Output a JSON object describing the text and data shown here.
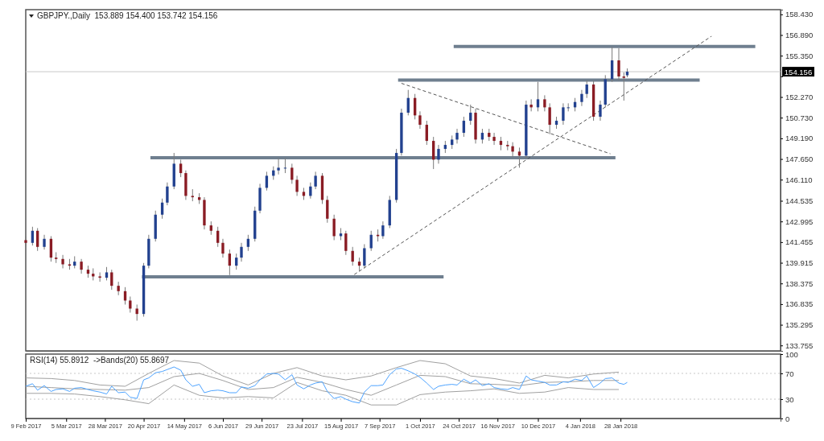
{
  "chart_data": [
    {
      "type": "candlestick",
      "title": "GBPJPY.,Daily  153.889 154.400 153.742 154.156",
      "xlim": [
        "2017-02-09",
        "2018-05-03"
      ],
      "ylim": [
        133.35,
        158.78
      ],
      "yticks": [
        {
          "value": 158.43,
          "label": "158.430"
        },
        {
          "value": 156.89,
          "label": "156.890"
        },
        {
          "value": 155.35,
          "label": "155.350"
        },
        {
          "value": 153.81,
          "label": null
        },
        {
          "value": 152.27,
          "label": "152.270"
        },
        {
          "value": 150.73,
          "label": "150.730"
        },
        {
          "value": 149.19,
          "label": "149.190"
        },
        {
          "value": 147.65,
          "label": "147.650"
        },
        {
          "value": 146.11,
          "label": "146.110"
        },
        {
          "value": 144.535,
          "label": "144.535"
        },
        {
          "value": 142.995,
          "label": "142.995"
        },
        {
          "value": 141.455,
          "label": "141.455"
        },
        {
          "value": 139.915,
          "label": "139.915"
        },
        {
          "value": 138.375,
          "label": "138.375"
        },
        {
          "value": 136.835,
          "label": "136.835"
        },
        {
          "value": 135.295,
          "label": "135.295"
        },
        {
          "value": 133.755,
          "label": "133.755"
        }
      ],
      "tick_labels": "y",
      "ref_lines": [
        {
          "axis": "y",
          "value": 154.156,
          "label": "154.156",
          "color": "#c8c8c8"
        }
      ],
      "series": [
        {
          "type": "candlestick",
          "x": [
            "2017-02-09",
            "2017-02-13",
            "2017-02-16",
            "2017-02-20",
            "2017-02-24",
            "2017-02-27",
            "2017-03-03",
            "2017-03-07",
            "2017-03-10",
            "2017-03-14",
            "2017-03-18",
            "2017-03-21",
            "2017-03-25",
            "2017-03-29",
            "2017-04-01",
            "2017-04-05",
            "2017-04-09",
            "2017-04-12",
            "2017-04-16",
            "2017-04-20",
            "2017-04-23",
            "2017-04-27",
            "2017-05-01",
            "2017-05-04",
            "2017-05-08",
            "2017-05-12",
            "2017-05-15",
            "2017-05-19",
            "2017-05-23",
            "2017-05-26",
            "2017-05-30",
            "2017-06-03",
            "2017-06-06",
            "2017-06-10",
            "2017-06-14",
            "2017-06-17",
            "2017-06-21",
            "2017-06-25",
            "2017-06-28",
            "2017-07-02",
            "2017-07-06",
            "2017-07-09",
            "2017-07-13",
            "2017-07-17",
            "2017-07-20",
            "2017-07-24",
            "2017-07-28",
            "2017-07-31",
            "2017-08-04",
            "2017-08-07",
            "2017-08-11",
            "2017-08-15",
            "2017-08-18",
            "2017-08-22",
            "2017-08-26",
            "2017-08-29",
            "2017-09-02",
            "2017-09-06",
            "2017-09-09",
            "2017-09-13",
            "2017-09-17",
            "2017-09-20",
            "2017-09-24",
            "2017-09-28",
            "2017-10-01",
            "2017-10-05",
            "2017-10-09",
            "2017-10-12",
            "2017-10-16",
            "2017-10-20",
            "2017-10-23",
            "2017-10-27",
            "2017-10-31",
            "2017-11-03",
            "2017-11-07",
            "2017-11-11",
            "2017-11-14",
            "2017-11-18",
            "2017-11-22",
            "2017-11-25",
            "2017-11-29",
            "2017-12-03",
            "2017-12-06",
            "2017-12-10",
            "2017-12-14",
            "2017-12-17",
            "2017-12-21",
            "2017-12-25",
            "2017-12-28",
            "2018-01-01",
            "2018-01-05",
            "2018-01-08",
            "2018-01-12",
            "2018-01-16",
            "2018-01-19",
            "2018-01-23",
            "2018-01-27",
            "2018-01-30",
            "2018-02-01"
          ],
          "ohlc": [
            [
              141.6,
              141.9,
              141.1,
              141.4
            ],
            [
              141.4,
              142.6,
              141.2,
              142.3
            ],
            [
              142.3,
              142.5,
              140.8,
              141.1
            ],
            [
              141.1,
              142.0,
              140.9,
              141.7
            ],
            [
              141.7,
              141.9,
              140.0,
              140.3
            ],
            [
              140.3,
              140.7,
              139.9,
              140.2
            ],
            [
              140.2,
              140.5,
              139.5,
              139.8
            ],
            [
              139.8,
              140.2,
              139.4,
              139.7
            ],
            [
              139.7,
              140.4,
              139.5,
              140.0
            ],
            [
              140.0,
              140.2,
              139.1,
              139.4
            ],
            [
              139.4,
              139.7,
              138.8,
              139.1
            ],
            [
              139.1,
              139.5,
              138.6,
              138.9
            ],
            [
              138.9,
              139.2,
              138.5,
              138.8
            ],
            [
              138.8,
              139.6,
              138.6,
              139.2
            ],
            [
              139.2,
              139.4,
              137.9,
              138.2
            ],
            [
              138.2,
              138.5,
              137.5,
              137.8
            ],
            [
              137.8,
              138.1,
              136.8,
              137.1
            ],
            [
              137.1,
              137.4,
              136.2,
              136.5
            ],
            [
              136.5,
              136.8,
              135.6,
              136.1
            ],
            [
              136.1,
              139.9,
              135.9,
              139.7
            ],
            [
              139.7,
              142.0,
              139.5,
              141.7
            ],
            [
              141.7,
              143.8,
              141.5,
              143.5
            ],
            [
              143.5,
              144.7,
              143.2,
              144.4
            ],
            [
              144.4,
              145.9,
              144.2,
              145.6
            ],
            [
              145.6,
              148.1,
              145.4,
              147.3
            ],
            [
              147.3,
              147.6,
              146.3,
              146.6
            ],
            [
              146.6,
              146.8,
              144.6,
              144.9
            ],
            [
              144.9,
              145.4,
              144.5,
              144.8
            ],
            [
              144.8,
              145.1,
              144.3,
              144.6
            ],
            [
              144.6,
              144.8,
              142.4,
              142.7
            ],
            [
              142.7,
              143.0,
              142.0,
              142.3
            ],
            [
              142.3,
              142.6,
              141.1,
              141.4
            ],
            [
              141.4,
              141.7,
              140.3,
              140.6
            ],
            [
              140.6,
              140.9,
              139.0,
              139.7
            ],
            [
              139.7,
              140.6,
              139.4,
              140.3
            ],
            [
              140.3,
              141.4,
              140.0,
              141.1
            ],
            [
              141.1,
              142.0,
              140.8,
              141.7
            ],
            [
              141.7,
              144.1,
              141.5,
              143.8
            ],
            [
              143.8,
              145.8,
              143.6,
              145.5
            ],
            [
              145.5,
              146.7,
              145.3,
              146.4
            ],
            [
              146.4,
              147.1,
              146.1,
              146.8
            ],
            [
              146.8,
              147.7,
              146.5,
              147.0
            ],
            [
              147.0,
              147.7,
              146.6,
              147.0
            ],
            [
              147.0,
              147.3,
              145.8,
              146.1
            ],
            [
              146.1,
              146.4,
              144.9,
              145.2
            ],
            [
              145.2,
              145.5,
              144.6,
              144.9
            ],
            [
              144.9,
              145.9,
              144.7,
              145.6
            ],
            [
              145.6,
              146.7,
              145.4,
              146.4
            ],
            [
              146.4,
              146.6,
              144.3,
              144.6
            ],
            [
              144.6,
              144.9,
              142.9,
              143.2
            ],
            [
              143.2,
              143.5,
              141.6,
              141.9
            ],
            [
              141.9,
              142.5,
              141.6,
              142.1
            ],
            [
              142.1,
              142.3,
              140.5,
              140.8
            ],
            [
              140.8,
              141.1,
              139.7,
              140.0
            ],
            [
              140.0,
              140.3,
              139.3,
              139.7
            ],
            [
              139.7,
              141.3,
              139.5,
              141.0
            ],
            [
              141.0,
              142.3,
              140.8,
              142.0
            ],
            [
              142.0,
              142.4,
              141.5,
              141.9
            ],
            [
              141.9,
              143.0,
              141.7,
              142.7
            ],
            [
              142.7,
              144.9,
              142.5,
              144.6
            ],
            [
              144.6,
              148.4,
              144.4,
              148.1
            ],
            [
              148.1,
              151.4,
              147.9,
              151.1
            ],
            [
              151.1,
              152.8,
              150.9,
              152.2
            ],
            [
              152.2,
              152.5,
              150.6,
              150.9
            ],
            [
              150.9,
              151.2,
              149.9,
              150.2
            ],
            [
              150.2,
              150.5,
              148.7,
              149.0
            ],
            [
              149.0,
              149.3,
              146.9,
              147.6
            ],
            [
              147.6,
              148.7,
              147.3,
              148.4
            ],
            [
              148.4,
              149.0,
              148.1,
              148.7
            ],
            [
              148.7,
              149.4,
              148.4,
              149.1
            ],
            [
              149.1,
              149.9,
              148.8,
              149.6
            ],
            [
              149.6,
              150.8,
              149.3,
              150.5
            ],
            [
              150.5,
              151.7,
              150.2,
              151.1
            ],
            [
              151.1,
              151.4,
              148.8,
              149.1
            ],
            [
              149.1,
              149.9,
              148.8,
              149.6
            ],
            [
              149.6,
              149.9,
              149.0,
              149.3
            ],
            [
              149.3,
              149.6,
              148.7,
              149.0
            ],
            [
              149.0,
              149.3,
              148.3,
              148.7
            ],
            [
              148.7,
              149.0,
              148.3,
              148.6
            ],
            [
              148.6,
              148.9,
              147.8,
              148.2
            ],
            [
              148.2,
              148.5,
              147.0,
              147.9
            ],
            [
              147.9,
              152.0,
              147.7,
              151.7
            ],
            [
              151.7,
              152.1,
              151.2,
              151.5
            ],
            [
              151.5,
              153.4,
              151.2,
              152.1
            ],
            [
              152.1,
              152.4,
              151.2,
              151.5
            ],
            [
              151.5,
              151.8,
              149.5,
              150.2
            ],
            [
              150.2,
              150.8,
              149.9,
              150.5
            ],
            [
              150.5,
              151.8,
              150.2,
              151.5
            ],
            [
              151.5,
              151.8,
              151.2,
              151.5
            ],
            [
              151.5,
              152.2,
              151.2,
              151.9
            ],
            [
              151.9,
              152.8,
              151.6,
              152.5
            ],
            [
              152.5,
              153.5,
              152.2,
              153.2
            ],
            [
              153.2,
              153.5,
              150.5,
              150.8
            ],
            [
              150.8,
              152.0,
              150.5,
              151.7
            ],
            [
              151.7,
              153.9,
              151.5,
              153.6
            ],
            [
              153.6,
              156.0,
              153.4,
              155.0
            ],
            [
              155.0,
              155.9,
              153.5,
              153.8
            ],
            [
              153.8,
              154.1,
              152.0,
              153.7
            ],
            [
              153.889,
              154.4,
              153.742,
              154.156
            ]
          ]
        },
        {
          "type": "line",
          "x": [
            "2017-10-21",
            "2018-04-18"
          ],
          "values": [
            156.04,
            156.04
          ],
          "color": "#6f7f8f",
          "line_style": "solid"
        },
        {
          "type": "line",
          "x": [
            "2017-09-18",
            "2018-03-16"
          ],
          "values": [
            153.53,
            153.53
          ],
          "color": "#6f7f8f",
          "line_style": "solid"
        },
        {
          "type": "line",
          "x": [
            "2017-04-24",
            "2018-01-25"
          ],
          "values": [
            147.74,
            147.74
          ],
          "color": "#6f7f8f",
          "line_style": "solid"
        },
        {
          "type": "line",
          "x": [
            "2017-04-19",
            "2017-10-15"
          ],
          "values": [
            138.87,
            138.87
          ],
          "color": "#6f7f8f",
          "line_style": "solid"
        },
        {
          "type": "line",
          "x": [
            "2017-08-23",
            "2018-03-23"
          ],
          "values": [
            139.04,
            156.8
          ],
          "color": "#555555",
          "line_style": "dashed"
        },
        {
          "type": "line",
          "x": [
            "2017-09-20",
            "2018-01-22"
          ],
          "values": [
            153.29,
            148.04
          ],
          "color": "#555555",
          "line_style": "dashed"
        }
      ]
    },
    {
      "type": "line",
      "title": "RSI(14) 55.8912  ->Bands(20) 55.8697",
      "xlim": [
        "2017-02-09",
        "2018-05-03"
      ],
      "xticks": [
        {
          "value": "2017-02-09",
          "label": "9 Feb 2017"
        },
        {
          "value": "2017-03-05",
          "label": "5 Mar 2017"
        },
        {
          "value": "2017-03-28",
          "label": "28 Mar 2017"
        },
        {
          "value": "2017-04-20",
          "label": "20 Apr 2017"
        },
        {
          "value": "2017-05-14",
          "label": "14 May 2017"
        },
        {
          "value": "2017-06-06",
          "label": "6 Jun 2017"
        },
        {
          "value": "2017-06-29",
          "label": "29 Jun 2017"
        },
        {
          "value": "2017-07-23",
          "label": "23 Jul 2017"
        },
        {
          "value": "2017-08-15",
          "label": "15 Aug 2017"
        },
        {
          "value": "2017-09-07",
          "label": "7 Sep 2017"
        },
        {
          "value": "2017-10-01",
          "label": "1 Oct 2017"
        },
        {
          "value": "2017-10-24",
          "label": "24 Oct 2017"
        },
        {
          "value": "2017-11-16",
          "label": "16 Nov 2017"
        },
        {
          "value": "2017-12-10",
          "label": "10 Dec 2017"
        },
        {
          "value": "2018-01-04",
          "label": "4 Jan 2018"
        },
        {
          "value": "2018-01-28",
          "label": "28 Jan 2018"
        }
      ],
      "ylim": [
        0,
        100
      ],
      "yticks": [
        0,
        30,
        70,
        100
      ],
      "ref_lines": [
        {
          "axis": "y",
          "value": 70,
          "color": "#c8c8c8",
          "line_style": "dotted"
        },
        {
          "axis": "y",
          "value": 30,
          "color": "#c8c8c8",
          "line_style": "dotted"
        }
      ],
      "x": [
        "2017-02-09",
        "2017-02-13",
        "2017-02-16",
        "2017-02-20",
        "2017-02-24",
        "2017-02-27",
        "2017-03-03",
        "2017-03-07",
        "2017-03-10",
        "2017-03-14",
        "2017-03-18",
        "2017-03-21",
        "2017-03-25",
        "2017-03-29",
        "2017-04-01",
        "2017-04-05",
        "2017-04-09",
        "2017-04-12",
        "2017-04-16",
        "2017-04-20",
        "2017-04-23",
        "2017-04-27",
        "2017-05-01",
        "2017-05-04",
        "2017-05-08",
        "2017-05-12",
        "2017-05-15",
        "2017-05-19",
        "2017-05-23",
        "2017-05-26",
        "2017-05-30",
        "2017-06-03",
        "2017-06-06",
        "2017-06-10",
        "2017-06-14",
        "2017-06-17",
        "2017-06-21",
        "2017-06-25",
        "2017-06-28",
        "2017-07-02",
        "2017-07-06",
        "2017-07-09",
        "2017-07-13",
        "2017-07-17",
        "2017-07-20",
        "2017-07-24",
        "2017-07-28",
        "2017-07-31",
        "2017-08-04",
        "2017-08-07",
        "2017-08-11",
        "2017-08-15",
        "2017-08-18",
        "2017-08-22",
        "2017-08-26",
        "2017-08-29",
        "2017-09-02",
        "2017-09-06",
        "2017-09-09",
        "2017-09-13",
        "2017-09-17",
        "2017-09-20",
        "2017-09-24",
        "2017-09-28",
        "2017-10-01",
        "2017-10-05",
        "2017-10-09",
        "2017-10-12",
        "2017-10-16",
        "2017-10-20",
        "2017-10-23",
        "2017-10-27",
        "2017-10-31",
        "2017-11-03",
        "2017-11-07",
        "2017-11-11",
        "2017-11-14",
        "2017-11-18",
        "2017-11-22",
        "2017-11-25",
        "2017-11-29",
        "2017-12-03",
        "2017-12-06",
        "2017-12-10",
        "2017-12-14",
        "2017-12-17",
        "2017-12-21",
        "2017-12-25",
        "2017-12-28",
        "2018-01-01",
        "2018-01-05",
        "2018-01-08",
        "2018-01-12",
        "2018-01-16",
        "2018-01-19",
        "2018-01-23",
        "2018-01-27",
        "2018-01-30",
        "2018-02-01"
      ],
      "series": [
        {
          "color": "#a0a0a0",
          "x": [
            "2017-02-09",
            "2017-02-24",
            "2017-03-10",
            "2017-03-25",
            "2017-04-09",
            "2017-04-23",
            "2017-05-08",
            "2017-05-23",
            "2017-06-06",
            "2017-06-21",
            "2017-07-06",
            "2017-07-20",
            "2017-08-04",
            "2017-08-18",
            "2017-09-02",
            "2017-09-17",
            "2017-10-01",
            "2017-10-16",
            "2017-10-31",
            "2017-11-14",
            "2017-11-29",
            "2017-12-14",
            "2017-12-28",
            "2018-01-12",
            "2018-01-27"
          ],
          "values": [
            63,
            62,
            59,
            52,
            50,
            70,
            90,
            86,
            66,
            52,
            70,
            79,
            66,
            60,
            66,
            79,
            90,
            85,
            66,
            62,
            55,
            67,
            63,
            69,
            72
          ]
        },
        {
          "color": "#a0a0a0",
          "x": [
            "2017-02-09",
            "2017-02-24",
            "2017-03-10",
            "2017-03-25",
            "2017-04-09",
            "2017-04-23",
            "2017-05-08",
            "2017-05-23",
            "2017-06-06",
            "2017-06-21",
            "2017-07-06",
            "2017-07-20",
            "2017-08-04",
            "2017-08-18",
            "2017-09-02",
            "2017-09-17",
            "2017-10-01",
            "2017-10-16",
            "2017-10-31",
            "2017-11-14",
            "2017-11-29",
            "2017-12-14",
            "2017-12-28",
            "2018-01-12",
            "2018-01-27"
          ],
          "values": [
            50,
            48,
            46,
            45,
            44,
            48,
            65,
            70,
            59,
            45,
            48,
            64,
            56,
            45,
            36,
            52,
            67,
            65,
            54,
            53,
            51,
            56,
            57,
            59,
            59
          ]
        },
        {
          "color": "#a0a0a0",
          "x": [
            "2017-02-09",
            "2017-02-24",
            "2017-03-10",
            "2017-03-25",
            "2017-04-09",
            "2017-04-23",
            "2017-05-08",
            "2017-05-23",
            "2017-06-06",
            "2017-06-21",
            "2017-07-06",
            "2017-07-20",
            "2017-08-04",
            "2017-08-18",
            "2017-09-02",
            "2017-09-17",
            "2017-10-01",
            "2017-10-16",
            "2017-10-31",
            "2017-11-14",
            "2017-11-29",
            "2017-12-14",
            "2017-12-28",
            "2018-01-12",
            "2018-01-27"
          ],
          "values": [
            39,
            39,
            38,
            34,
            29,
            23,
            52,
            36,
            32,
            34,
            32,
            56,
            43,
            36,
            21,
            21,
            37,
            41,
            43,
            46,
            39,
            41,
            48,
            45,
            45
          ]
        },
        {
          "color": "#4da3ff",
          "values": [
            50,
            54,
            44,
            51,
            42,
            45,
            46,
            42,
            47,
            48,
            45,
            43,
            41,
            38,
            50,
            40,
            41,
            33,
            31,
            60,
            63,
            71,
            73,
            76,
            80,
            75,
            60,
            50,
            53,
            40,
            43,
            44,
            43,
            40,
            40,
            49,
            47,
            51,
            60,
            69,
            70,
            69,
            60,
            68,
            52,
            46,
            52,
            55,
            57,
            42,
            31,
            34,
            30,
            26,
            24,
            41,
            51,
            51,
            52,
            68,
            77,
            78,
            74,
            69,
            64,
            55,
            45,
            50,
            52,
            53,
            52,
            61,
            55,
            60,
            51,
            54,
            48,
            46,
            45,
            48,
            45,
            66,
            60,
            58,
            56,
            52,
            52,
            57,
            56,
            61,
            59,
            66,
            48,
            55,
            62,
            63,
            55,
            53,
            56
          ]
        }
      ]
    }
  ]
}
